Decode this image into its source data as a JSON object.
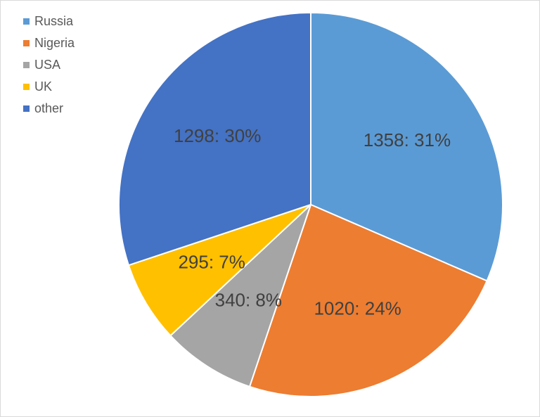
{
  "chart_data": {
    "type": "pie",
    "title": "",
    "categories": [
      "Russia",
      "Nigeria",
      "USA",
      "UK",
      "other"
    ],
    "values": [
      1358,
      1020,
      340,
      295,
      1298
    ],
    "percent_labels": [
      "31%",
      "24%",
      "8%",
      "7%",
      "30%"
    ],
    "data_labels": [
      "1358: 31%",
      "1020: 24%",
      "340: 8%",
      "295: 7%",
      "1298: 30%"
    ],
    "colors": [
      "#5b9bd5",
      "#ed7d31",
      "#a5a5a5",
      "#ffc000",
      "#4472c4"
    ],
    "start_angle": "12 o'clock, clockwise",
    "legend": {
      "position": "top-left"
    }
  }
}
